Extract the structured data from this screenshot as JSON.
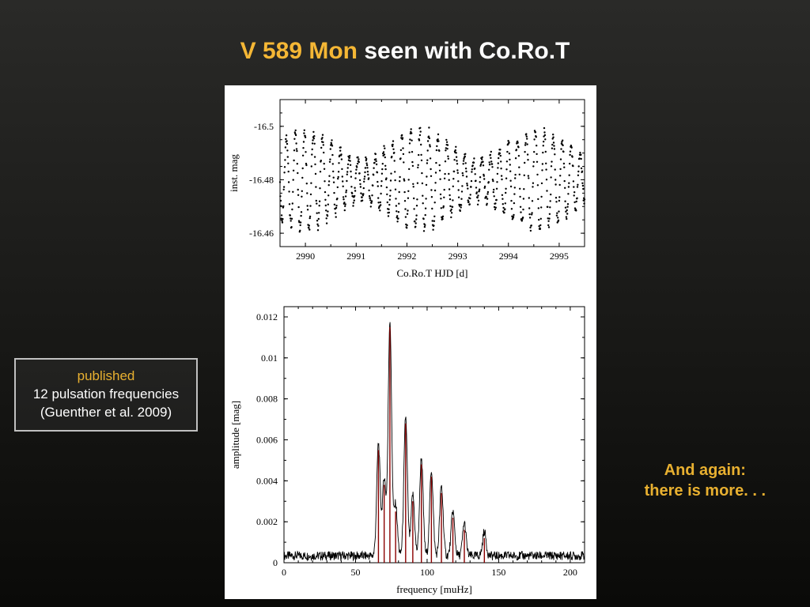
{
  "title": {
    "part1": "V 589 Mon",
    "part2": " seen with Co.Ro.T"
  },
  "callout": {
    "line1": "published",
    "line2": "12 pulsation frequencies",
    "line3": "(Guenther et al. 2009)"
  },
  "sideText": {
    "line1": "And again:",
    "line2": "there is more. . ."
  },
  "topChart": {
    "type": "scatter-timeseries",
    "xlabel": "Co.Ro.T HJD [d]",
    "ylabel": "inst. mag",
    "xlim": [
      2989.5,
      2995.5
    ],
    "ylim": [
      -16.455,
      -16.51
    ],
    "inverted_y": false,
    "xticks": [
      2990,
      2991,
      2992,
      2993,
      2994,
      2995
    ],
    "yticks": [
      -16.5,
      -16.48,
      -16.46
    ],
    "plot_bg": "#ffffff",
    "point_color": "#000000",
    "point_size": 1.2,
    "font_family": "serif",
    "label_fontsize": 13,
    "tick_fontsize": 12,
    "n_points": 900,
    "oscillation": {
      "base": -16.48,
      "main_period_d": 0.175,
      "main_amp": 0.013,
      "beat_period_d": 2.2,
      "beat_amp": 0.006,
      "noise": 0.0018
    }
  },
  "bottomChart": {
    "type": "spectrum",
    "xlabel": "frequency [muHz]",
    "ylabel": "amplitude [mag]",
    "xlim": [
      0,
      210
    ],
    "ylim": [
      0,
      0.0125
    ],
    "xticks": [
      0,
      50,
      100,
      150,
      200
    ],
    "yticks": [
      0,
      0.002,
      0.004,
      0.006,
      0.008,
      0.01,
      0.012
    ],
    "plot_bg": "#ffffff",
    "line_color": "#000000",
    "peak_color": "#8b0000",
    "line_width": 0.9,
    "font_family": "serif",
    "label_fontsize": 13,
    "tick_fontsize": 12,
    "noise_level": 0.0004,
    "peaks": [
      {
        "f": 66,
        "a": 0.0055
      },
      {
        "f": 70,
        "a": 0.0038
      },
      {
        "f": 74,
        "a": 0.0115
      },
      {
        "f": 78,
        "a": 0.0025
      },
      {
        "f": 85,
        "a": 0.0068
      },
      {
        "f": 90,
        "a": 0.003
      },
      {
        "f": 96,
        "a": 0.0048
      },
      {
        "f": 103,
        "a": 0.0042
      },
      {
        "f": 110,
        "a": 0.0034
      },
      {
        "f": 118,
        "a": 0.0022
      },
      {
        "f": 126,
        "a": 0.0016
      },
      {
        "f": 140,
        "a": 0.0012
      }
    ]
  },
  "colors": {
    "slide_bg_top": "#2a2a28",
    "slide_bg_bottom": "#0a0a08",
    "accent": "#e8b030",
    "white": "#ffffff",
    "callout_border": "#c0c0c0"
  }
}
